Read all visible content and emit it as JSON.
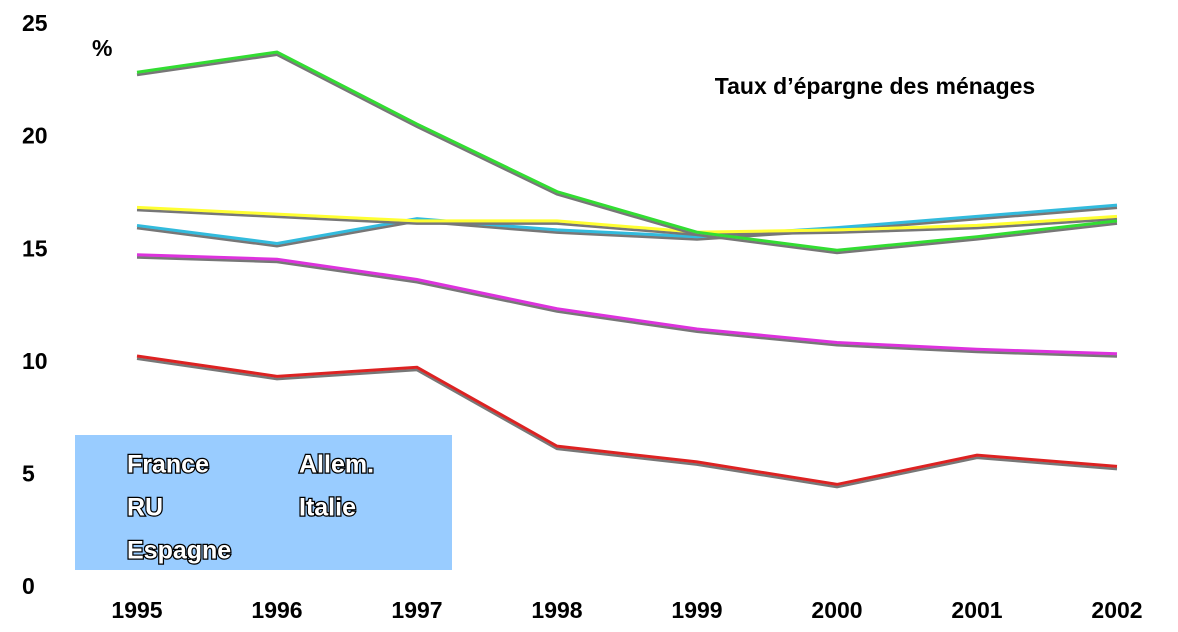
{
  "chart_data": {
    "type": "line",
    "title": "Taux d’épargne des ménages",
    "y_label": "%",
    "categories": [
      "1995",
      "1996",
      "1997",
      "1998",
      "1999",
      "2000",
      "2001",
      "2002"
    ],
    "series": [
      {
        "name": "France",
        "color": "#33bbdd",
        "values": [
          16.1,
          15.3,
          16.4,
          15.9,
          15.6,
          16.0,
          16.5,
          17.0
        ]
      },
      {
        "name": "Allem.",
        "color": "#ffff33",
        "values": [
          16.9,
          16.6,
          16.3,
          16.3,
          15.8,
          15.9,
          16.1,
          16.5
        ]
      },
      {
        "name": "RU",
        "color": "#dd2222",
        "values": [
          10.3,
          9.4,
          9.8,
          6.3,
          5.6,
          4.6,
          5.9,
          5.4
        ]
      },
      {
        "name": "Italie",
        "color": "#33dd33",
        "values": [
          22.9,
          23.8,
          20.6,
          17.6,
          15.8,
          15.0,
          15.6,
          16.3
        ]
      },
      {
        "name": "Espagne",
        "color": "#dd33dd",
        "values": [
          14.8,
          14.6,
          13.7,
          12.4,
          11.5,
          10.9,
          10.6,
          10.4
        ]
      }
    ],
    "ylim": [
      0,
      25
    ],
    "yticks": [
      0,
      5,
      10,
      15,
      20,
      25
    ],
    "grid": false,
    "legend": "lower left",
    "legend_background": "#99ccff"
  }
}
